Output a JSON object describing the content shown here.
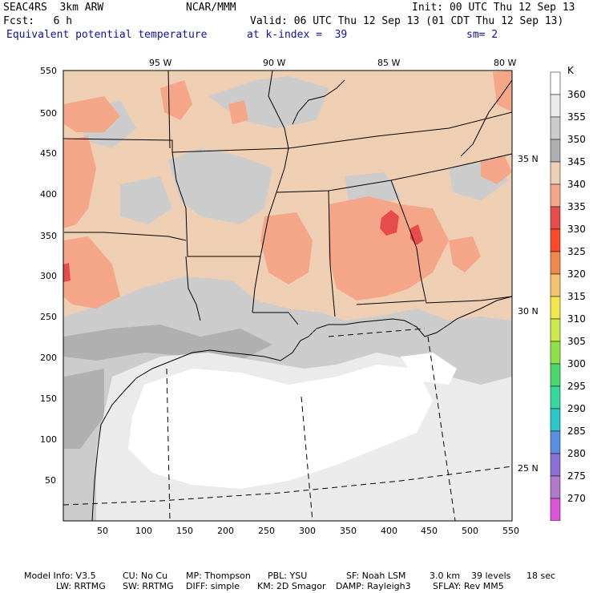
{
  "header": {
    "model": "SEAC4RS  3km ARW",
    "org": "NCAR/MMM",
    "init": "Init: 00 UTC Thu 12 Sep 13",
    "fcst": "Fcst:   6 h",
    "valid": "Valid: 06 UTC Thu 12 Sep 13 (01 CDT Thu 12 Sep 13)",
    "field": "Equivalent potential temperature",
    "level": "at k-index =  39",
    "smooth": "sm= 2"
  },
  "map": {
    "lon_labels": [
      "95 W",
      "90 W",
      "85 W",
      "80 W"
    ],
    "lat_labels": [
      "35 N",
      "30 N",
      "25 N"
    ],
    "y_ticks": [
      "550",
      "500",
      "450",
      "400",
      "350",
      "300",
      "250",
      "200",
      "150",
      "100",
      "50"
    ],
    "x_ticks": [
      "50",
      "100",
      "150",
      "200",
      "250",
      "300",
      "350",
      "400",
      "450",
      "500",
      "550"
    ]
  },
  "legend": {
    "unit": "K",
    "levels": [
      "360",
      "355",
      "350",
      "345",
      "340",
      "335",
      "330",
      "325",
      "320",
      "315",
      "310",
      "305",
      "300",
      "295",
      "290",
      "285",
      "280",
      "275",
      "270"
    ],
    "colors": [
      "#ffffff",
      "#ebebeb",
      "#cccccc",
      "#b0b0b0",
      "#eecfb4",
      "#f5a688",
      "#e84b4b",
      "#ff4a2a",
      "#f2894c",
      "#f5c26d",
      "#f2e84a",
      "#cdea4a",
      "#90e04a",
      "#4ada6a",
      "#35d9a0",
      "#2ac8c8",
      "#5a8ee0",
      "#8a70d8",
      "#b07ac8",
      "#dd55d8"
    ]
  },
  "footer": {
    "line1": [
      "Model Info: V3.5",
      "CU: No Cu",
      "MP: Thompson",
      "PBL: YSU",
      "SF: Noah LSM",
      "3.0 km",
      "39 levels",
      "18 sec"
    ],
    "line2": [
      "LW: RRTMG",
      "SW: RRTMG",
      "DIFF: simple",
      "KM: 2D Smagor",
      "DAMP: Rayleigh3",
      "SFLAY: Rev MM5"
    ]
  }
}
